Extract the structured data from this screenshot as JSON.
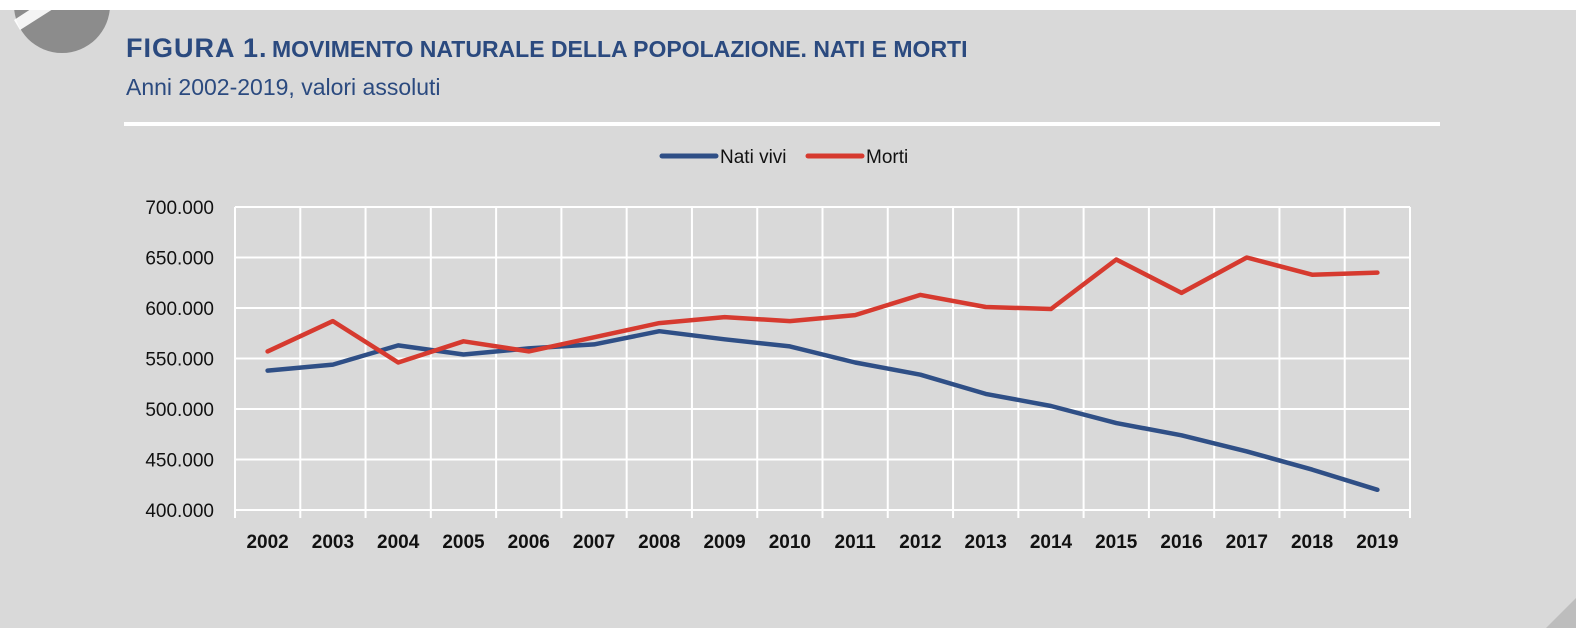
{
  "header": {
    "figure_label": "FIGURA 1.",
    "title": "MOVIMENTO NATURALE DELLA POPOLAZIONE. NATI E MORTI",
    "subtitle": "Anni 2002-2019, valori assoluti"
  },
  "colors": {
    "background": "#d9d9d9",
    "title": "#2b4a7f",
    "nati": "#2f4f86",
    "morti": "#d63a2f",
    "grid": "#ffffff"
  },
  "chart_data": {
    "type": "line",
    "x": [
      "2002",
      "2003",
      "2004",
      "2005",
      "2006",
      "2007",
      "2008",
      "2009",
      "2010",
      "2011",
      "2012",
      "2013",
      "2014",
      "2015",
      "2016",
      "2017",
      "2018",
      "2019"
    ],
    "y_ticks": [
      "400.000",
      "450.000",
      "500.000",
      "550.000",
      "600.000",
      "650.000",
      "700.000"
    ],
    "ylim": [
      400000,
      700000
    ],
    "grid": true,
    "legend_position": "top-center",
    "series": [
      {
        "name": "Nati vivi",
        "values": [
          538000,
          544000,
          563000,
          554000,
          560000,
          564000,
          577000,
          569000,
          562000,
          546000,
          534000,
          515000,
          503000,
          486000,
          474000,
          458000,
          440000,
          420000
        ]
      },
      {
        "name": "Morti",
        "values": [
          557000,
          587000,
          546000,
          567000,
          557000,
          571000,
          585000,
          591000,
          587000,
          593000,
          613000,
          601000,
          599000,
          648000,
          615000,
          650000,
          633000,
          635000
        ]
      }
    ]
  }
}
